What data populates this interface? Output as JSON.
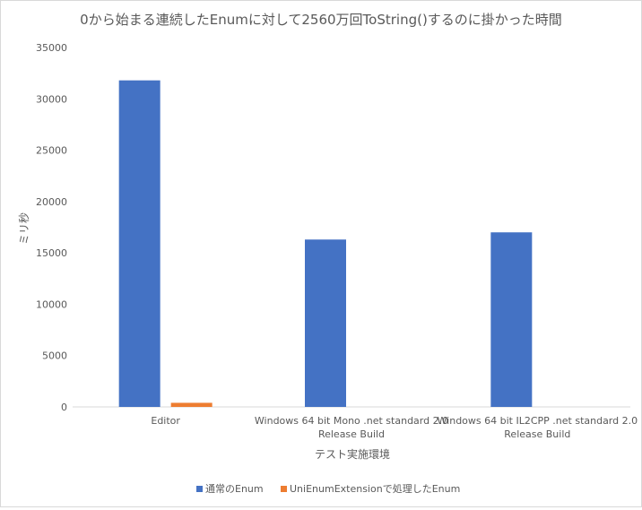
{
  "chart_data": {
    "type": "bar",
    "title": "0から始まる連続したEnumに対して2560万回ToString()するのに掛かった時間",
    "xlabel": "テスト実施環境",
    "ylabel": "ミリ秒",
    "ylim": [
      0,
      35000
    ],
    "yticks": [
      "0",
      "5000",
      "10000",
      "15000",
      "20000",
      "25000",
      "30000",
      "35000"
    ],
    "grid": false,
    "legend_position": "bottom",
    "categories": [
      [
        "Editor"
      ],
      [
        "Windows 64 bit Mono .net standard 2.0",
        "Release Build"
      ],
      [
        "Windows 64 bit IL2CPP .net standard 2.0",
        "Release Build"
      ]
    ],
    "series": [
      {
        "name": "通常のEnum",
        "color": "#4472c4",
        "values": [
          31800,
          16300,
          17000
        ]
      },
      {
        "name": "UniEnumExtensionで処理したEnum",
        "color": "#ed7d31",
        "values": [
          400,
          0,
          0
        ]
      }
    ]
  }
}
